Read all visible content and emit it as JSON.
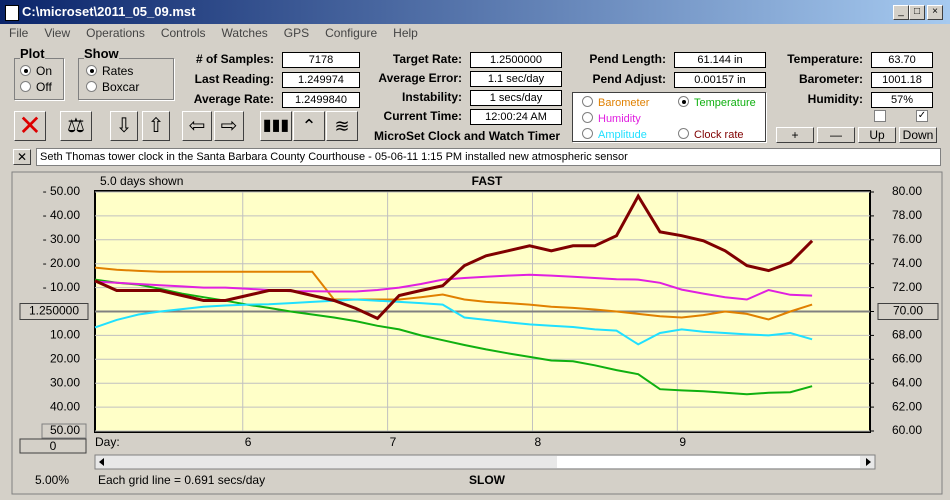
{
  "window": {
    "title": "C:\\microset\\2011_05_09.mst"
  },
  "menu": [
    "File",
    "View",
    "Operations",
    "Controls",
    "Watches",
    "GPS",
    "Configure",
    "Help"
  ],
  "plot": {
    "label": "Plot",
    "options": [
      "On",
      "Off"
    ]
  },
  "show": {
    "label": "Show",
    "options": [
      "Rates",
      "Boxcar"
    ]
  },
  "samples": [
    [
      "# of Samples:",
      "7178"
    ],
    [
      "Last Reading:",
      "1.249974"
    ],
    [
      "Average Rate:",
      "1.2499840"
    ]
  ],
  "timing": [
    [
      "Target Rate:",
      "1.2500000"
    ],
    [
      "Average Error:",
      "1.1 sec/day"
    ],
    [
      "Instability:",
      "1 secs/day"
    ],
    [
      "Current Time:",
      "12:00:24 AM"
    ]
  ],
  "pendulum": [
    [
      "Pend Length:",
      "61.144 in"
    ],
    [
      "Pend Adjust:",
      "0.00157 in"
    ]
  ],
  "environment": [
    [
      "Temperature:",
      "63.70"
    ],
    [
      "Barometer:",
      "1001.18"
    ],
    [
      "Humidity:",
      "57%"
    ]
  ],
  "app_title": "MicroSet Clock and Watch Timer",
  "buttons": [
    "+",
    "—",
    "Up",
    "Down"
  ],
  "note": "Seth Thomas tower clock in the Santa Barbara County Courthouse -  05-06-11 1:15 PM installed new atmospheric sensor",
  "chart": {
    "type": "line",
    "days_shown": "5.0 days shown",
    "top_label": "FAST",
    "bottom_label": "SLOW",
    "zoom": "5.00%",
    "grid_note": "Each grid line = 0.691 secs/day",
    "x_label": "Day:",
    "offset": "0",
    "x": [
      4.98,
      5.13,
      5.28,
      5.43,
      5.58,
      5.73,
      5.88,
      6.03,
      6.18,
      6.33,
      6.48,
      6.63,
      6.78,
      6.93,
      7.08,
      7.23,
      7.38,
      7.53,
      7.68,
      7.83,
      7.98,
      8.13,
      8.28,
      8.43,
      8.58,
      8.73,
      8.88,
      9.03,
      9.18,
      9.33,
      9.48,
      9.63,
      9.78,
      9.93
    ],
    "xlim": [
      4.98,
      10.33
    ],
    "xticks": [
      6,
      7,
      8,
      9
    ],
    "ylim": [
      -50,
      50
    ],
    "yticks": [
      {
        "value": 50,
        "label": "- 50.00"
      },
      {
        "value": 40,
        "label": "- 40.00"
      },
      {
        "value": 30,
        "label": "- 30.00"
      },
      {
        "value": 20,
        "label": "- 20.00"
      },
      {
        "value": 10,
        "label": "- 10.00"
      },
      {
        "value": 0,
        "label": "1.250000"
      },
      {
        "value": -10,
        "label": "10.00"
      },
      {
        "value": -20,
        "label": "20.00"
      },
      {
        "value": -30,
        "label": "30.00"
      },
      {
        "value": -40,
        "label": "40.00"
      },
      {
        "value": -50,
        "label": "50.00"
      }
    ],
    "y2lim": [
      60,
      80
    ],
    "y2ticks": [
      {
        "value": 80,
        "label": "80.00"
      },
      {
        "value": 78,
        "label": "78.00"
      },
      {
        "value": 76,
        "label": "76.00"
      },
      {
        "value": 74,
        "label": "74.00"
      },
      {
        "value": 72,
        "label": "72.00"
      },
      {
        "value": 70,
        "label": "70.00"
      },
      {
        "value": 68,
        "label": "68.00"
      },
      {
        "value": 66,
        "label": "66.00"
      },
      {
        "value": 64,
        "label": "64.00"
      },
      {
        "value": 62,
        "label": "62.00"
      },
      {
        "value": 60,
        "label": "60.00"
      }
    ],
    "selected": "Temperature",
    "series": [
      {
        "name": "Barometer",
        "color": "#e08000",
        "axis": "y2",
        "values": [
          73.67,
          73.5,
          73.4,
          73.33,
          73.33,
          73.33,
          73.33,
          73.33,
          73.33,
          73.33,
          73.33,
          71.0,
          71.0,
          71.0,
          71.0,
          71.2,
          71.42,
          71.0,
          70.8,
          70.7,
          70.58,
          70.4,
          70.3,
          70.17,
          70.0,
          69.8,
          69.6,
          69.5,
          69.7,
          70.0,
          69.8,
          69.33,
          70.0,
          70.58
        ]
      },
      {
        "name": "Temperature",
        "color": "#10b010",
        "axis": "y2",
        "values": [
          72.67,
          72.4,
          72.25,
          71.9,
          71.5,
          71.2,
          70.9,
          70.58,
          70.3,
          70.0,
          69.75,
          69.5,
          69.2,
          68.8,
          68.5,
          68.0,
          67.6,
          67.2,
          66.83,
          66.5,
          66.2,
          65.9,
          65.83,
          65.5,
          65.1,
          64.75,
          63.5,
          63.4,
          63.33,
          63.2,
          63.08,
          63.2,
          63.25,
          63.75
        ]
      },
      {
        "name": "Humidity",
        "color": "#e020e0",
        "axis": "y2",
        "values": [
          72.5,
          72.4,
          72.3,
          72.2,
          72.1,
          72.0,
          72.0,
          71.9,
          71.8,
          71.7,
          71.7,
          71.67,
          71.67,
          71.8,
          72.0,
          72.3,
          72.67,
          72.8,
          72.9,
          73.0,
          73.08,
          73.0,
          72.9,
          72.8,
          72.7,
          72.67,
          72.4,
          71.83,
          71.5,
          71.2,
          71.0,
          71.8,
          71.4,
          71.33
        ]
      },
      {
        "name": "Amplitude",
        "color": "#20e0ff",
        "axis": "y2",
        "values": [
          68.67,
          69.3,
          69.75,
          70.0,
          70.2,
          70.4,
          70.5,
          70.58,
          70.6,
          70.7,
          70.8,
          70.9,
          71.0,
          70.9,
          70.8,
          70.7,
          70.58,
          69.5,
          69.3,
          69.1,
          68.92,
          68.8,
          68.7,
          68.5,
          68.4,
          67.25,
          68.2,
          68.5,
          68.3,
          68.2,
          68.08,
          68.0,
          68.2,
          67.67
        ]
      },
      {
        "name": "Clock rate",
        "color": "#800000",
        "values": [
          12.9,
          8.8,
          8.8,
          8.8,
          6.7,
          4.6,
          4.6,
          6.7,
          8.8,
          8.8,
          6.7,
          4.6,
          1.3,
          -2.9,
          6.7,
          8.8,
          10.8,
          19.2,
          23.3,
          25.4,
          27.5,
          25.4,
          27.5,
          27.5,
          31.7,
          48.3,
          33.3,
          31.7,
          29.6,
          25.4,
          19.2,
          17.1,
          20.4,
          29.6
        ]
      }
    ]
  }
}
